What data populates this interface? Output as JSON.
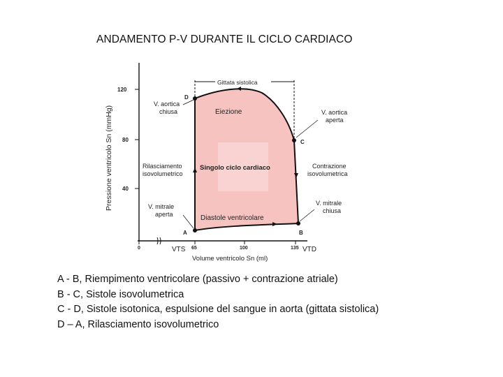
{
  "title": "ANDAMENTO P-V DURANTE IL CICLO CARDIACO",
  "axes": {
    "ylabel": "Pressione ventricolo Sn (mmHg)",
    "xlabel": "Volume ventricolo Sn (ml)",
    "y_ticks": [
      "120",
      "80",
      "40"
    ],
    "x_ticks": [
      "0",
      "65",
      "100",
      "135"
    ],
    "x_tick_labels_extra": {
      "vts": "VTS",
      "vtd": "VTD"
    }
  },
  "points": {
    "A": "A",
    "B": "B",
    "C": "C",
    "D": "D"
  },
  "labels": {
    "gittata": "Gittata sistolica",
    "eiezione": "Eiezione",
    "singolo": "Singolo ciclo cardiaco",
    "diastole": "Diastole ventricolare",
    "aortica_chiusa_1": "V. aortica",
    "aortica_chiusa_2": "chiusa",
    "aortica_aperta_1": "V. aortica",
    "aortica_aperta_2": "aperta",
    "rilasciamento_1": "Rilasciamento",
    "rilasciamento_2": "isovolumetrico",
    "contrazione_1": "Contrazione",
    "contrazione_2": "isovolumetrica",
    "mitrale_aperta_1": "V. mitrale",
    "mitrale_aperta_2": "aperta",
    "mitrale_chiusa_1": "V. mitrale",
    "mitrale_chiusa_2": "chiusa"
  },
  "colors": {
    "loop_fill": "#f6c3c0",
    "loop_core": "#f9d2d0",
    "line": "#111111"
  },
  "legend": [
    "A - B, Riempimento ventricolare (passivo + contrazione atriale)",
    "B - C, Sistole isovolumetrica",
    "C - D, Sistole isotonica, espulsione del sangue in aorta (gittata sistolica)",
    "D – A, Rilasciamento isovolumetrico"
  ]
}
